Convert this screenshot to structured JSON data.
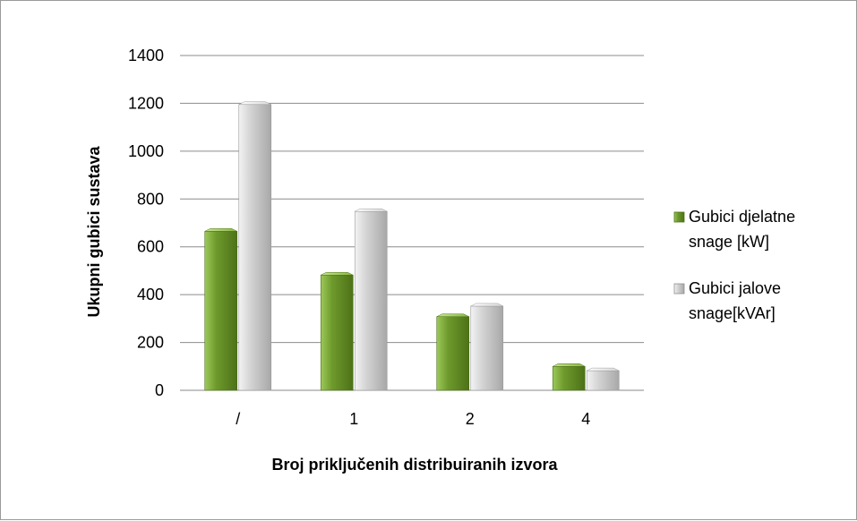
{
  "chart_data": {
    "type": "bar",
    "categories": [
      "/",
      "1",
      "2",
      "4"
    ],
    "series": [
      {
        "name": "Gubici djelatne snage [kW]",
        "values": [
          665,
          482,
          308,
          100
        ],
        "color": "#6e9a2c",
        "legend_lines": [
          "Gubici djelatne",
          "snage [kW]"
        ]
      },
      {
        "name": "Gubici jalove snage[kVAr]",
        "values": [
          1195,
          748,
          352,
          82
        ],
        "color": "#c8c8c8",
        "legend_lines": [
          "Gubici jalove",
          "snage[kVAr]"
        ]
      }
    ],
    "xlabel": "Broj priključenih distribuiranih izvora",
    "ylabel": "Ukupni gubici sustava",
    "ylim": [
      0,
      1400
    ],
    "yticks": [
      0,
      200,
      400,
      600,
      800,
      1000,
      1200,
      1400
    ],
    "grid": true,
    "legend_position": "right"
  }
}
